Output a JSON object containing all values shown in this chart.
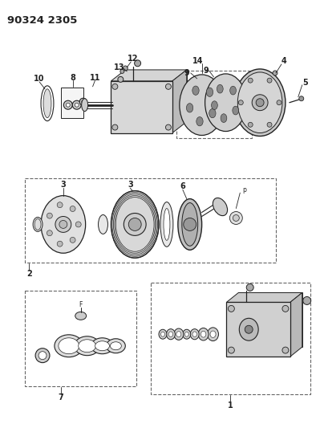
{
  "title": "90324 2305",
  "bg_color": "#ffffff",
  "title_fontsize": 9.5,
  "fig_width": 3.99,
  "fig_height": 5.33,
  "dpi": 100,
  "lbl_fs": 7.0,
  "line_color": "#222222",
  "part_fill": "#e0e0e0",
  "part_edge": "#333333"
}
